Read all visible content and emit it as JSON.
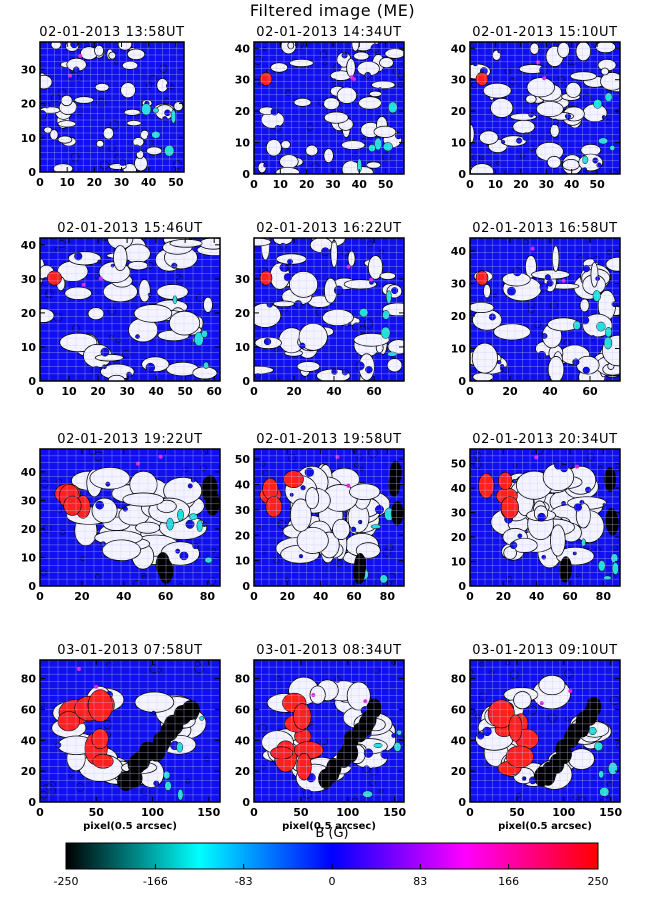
{
  "title": "Filtered image (ME)",
  "chart_data": {
    "type": "heatmap",
    "title": "Filtered image (ME)",
    "colorbar": {
      "label": "B (G)",
      "min": -250,
      "max": 250,
      "ticks": [
        -250,
        -166,
        -83,
        0,
        83,
        166,
        250
      ],
      "tick_labels": [
        "-250",
        "-166",
        "-83",
        "0",
        "83",
        "166",
        "250"
      ],
      "colors": [
        "#000000",
        "#00ffff",
        "#0000ff",
        "#ff00ff",
        "#ff0000"
      ]
    },
    "panels": [
      {
        "title": "02-01-2013 13:58UT",
        "xlim": [
          0,
          53
        ],
        "ylim": [
          0,
          38
        ],
        "xticks": [
          0,
          10,
          20,
          30,
          40,
          50
        ],
        "yticks": [
          0,
          10,
          20,
          30
        ],
        "xlabel": ""
      },
      {
        "title": "02-01-2013 14:34UT",
        "xlim": [
          0,
          57
        ],
        "ylim": [
          0,
          42
        ],
        "xticks": [
          0,
          10,
          20,
          30,
          40,
          50
        ],
        "yticks": [
          0,
          10,
          20,
          30,
          40
        ],
        "xlabel": ""
      },
      {
        "title": "02-01-2013 15:10UT",
        "xlim": [
          0,
          59
        ],
        "ylim": [
          0,
          42
        ],
        "xticks": [
          0,
          10,
          20,
          30,
          40,
          50
        ],
        "yticks": [
          0,
          10,
          20,
          30,
          40
        ],
        "xlabel": ""
      },
      {
        "title": "02-01-2013 15:46UT",
        "xlim": [
          0,
          62
        ],
        "ylim": [
          0,
          42
        ],
        "xticks": [
          0,
          10,
          20,
          30,
          40,
          50,
          60
        ],
        "yticks": [
          0,
          10,
          20,
          30,
          40
        ],
        "xlabel": ""
      },
      {
        "title": "02-01-2013 16:22UT",
        "xlim": [
          0,
          75
        ],
        "ylim": [
          0,
          42
        ],
        "xticks": [
          0,
          20,
          40,
          60
        ],
        "yticks": [
          0,
          10,
          20,
          30
        ],
        "xlabel": ""
      },
      {
        "title": "02-01-2013 16:58UT",
        "xlim": [
          0,
          75
        ],
        "ylim": [
          0,
          44
        ],
        "xticks": [
          0,
          20,
          40,
          60
        ],
        "yticks": [
          0,
          10,
          20,
          30,
          40
        ],
        "xlabel": ""
      },
      {
        "title": "02-01-2013 19:22UT",
        "xlim": [
          0,
          86
        ],
        "ylim": [
          0,
          48
        ],
        "xticks": [
          0,
          20,
          40,
          60,
          80
        ],
        "yticks": [
          0,
          10,
          20,
          30,
          40
        ],
        "xlabel": ""
      },
      {
        "title": "02-01-2013 19:58UT",
        "xlim": [
          0,
          90
        ],
        "ylim": [
          0,
          54
        ],
        "xticks": [
          0,
          20,
          40,
          60,
          80
        ],
        "yticks": [
          0,
          10,
          20,
          30,
          40,
          50
        ],
        "xlabel": ""
      },
      {
        "title": "02-01-2013 20:34UT",
        "xlim": [
          0,
          90
        ],
        "ylim": [
          0,
          56
        ],
        "xticks": [
          0,
          20,
          40,
          60,
          80
        ],
        "yticks": [
          0,
          10,
          20,
          30,
          40,
          50
        ],
        "xlabel": ""
      },
      {
        "title": "03-01-2013 07:58UT",
        "xlim": [
          0,
          160
        ],
        "ylim": [
          0,
          92
        ],
        "xticks": [
          0,
          50,
          100,
          150
        ],
        "yticks": [
          0,
          20,
          40,
          60,
          80
        ],
        "xlabel": "pixel(0.5 arcsec)"
      },
      {
        "title": "03-01-2013 08:34UT",
        "xlim": [
          0,
          160
        ],
        "ylim": [
          0,
          92
        ],
        "xticks": [
          0,
          50,
          100,
          150
        ],
        "yticks": [
          0,
          20,
          40,
          60,
          80
        ],
        "xlabel": "pixel(0.5 arcsec)"
      },
      {
        "title": "03-01-2013 09:10UT",
        "xlim": [
          0,
          160
        ],
        "ylim": [
          0,
          92
        ],
        "xticks": [
          0,
          50,
          100,
          150
        ],
        "yticks": [
          0,
          20,
          40,
          60,
          80
        ],
        "xlabel": "pixel(0.5 arcsec)"
      }
    ]
  }
}
